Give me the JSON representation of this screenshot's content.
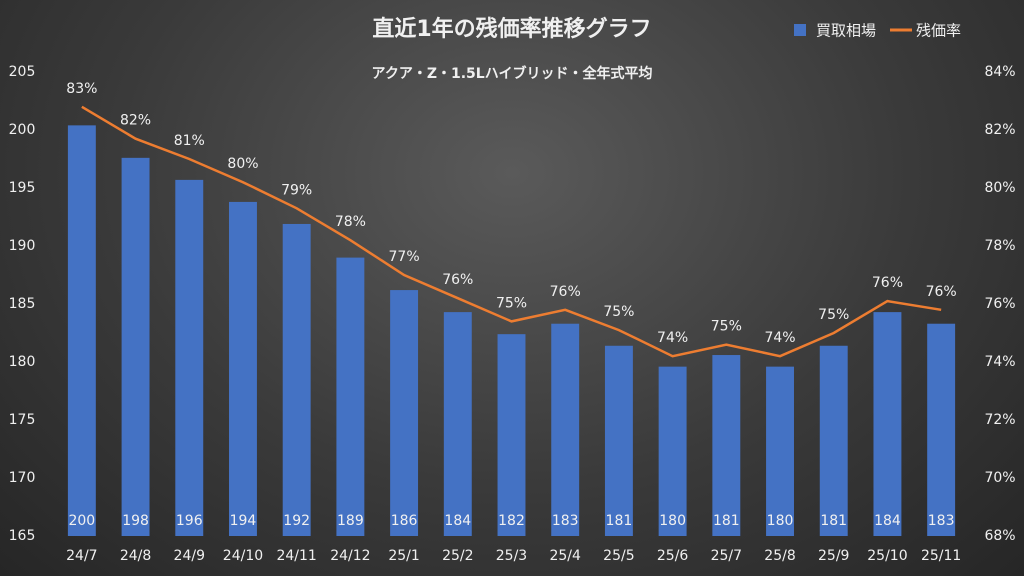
{
  "chart_data": {
    "type": "bar",
    "title": "直近1年の残価率推移グラフ",
    "subtitle": "アクア・Z・1.5Lハイブリッド・全年式平均",
    "categories": [
      "24/7",
      "24/8",
      "24/9",
      "24/10",
      "24/11",
      "24/12",
      "25/1",
      "25/2",
      "25/3",
      "25/4",
      "25/5",
      "25/6",
      "25/7",
      "25/8",
      "25/9",
      "25/10",
      "25/11"
    ],
    "series": [
      {
        "name": "買取相場",
        "color": "#4472c4",
        "type": "bar",
        "values": [
          200.4,
          197.6,
          195.7,
          193.8,
          191.9,
          189.0,
          186.2,
          184.3,
          182.4,
          183.3,
          181.4,
          179.6,
          180.6,
          179.6,
          181.4,
          184.3,
          183.3
        ],
        "value_labels": [
          "200",
          "198",
          "196",
          "194",
          "192",
          "189",
          "186",
          "184",
          "182",
          "183",
          "181",
          "180",
          "181",
          "180",
          "181",
          "184",
          "183"
        ]
      },
      {
        "name": "残価率",
        "color": "#ed7d31",
        "type": "line",
        "axis": "y2",
        "values": [
          82.8,
          81.7,
          81.0,
          80.2,
          79.3,
          78.2,
          77.0,
          76.2,
          75.4,
          75.8,
          75.1,
          74.2,
          74.6,
          74.2,
          75.0,
          76.1,
          75.8
        ],
        "value_labels": [
          "83%",
          "82%",
          "81%",
          "80%",
          "79%",
          "78%",
          "77%",
          "76%",
          "75%",
          "76%",
          "75%",
          "74%",
          "75%",
          "74%",
          "75%",
          "76%",
          "76%"
        ]
      }
    ],
    "ylim": [
      165,
      205
    ],
    "yticks": [
      165,
      170,
      175,
      180,
      185,
      190,
      195,
      200,
      205
    ],
    "y2lim": [
      68,
      84
    ],
    "y2ticks": [
      {
        "value": 68,
        "label": "68%"
      },
      {
        "value": 70,
        "label": "70%"
      },
      {
        "value": 72,
        "label": "72%"
      },
      {
        "value": 74,
        "label": "74%"
      },
      {
        "value": 76,
        "label": "76%"
      },
      {
        "value": 78,
        "label": "78%"
      },
      {
        "value": 80,
        "label": "80%"
      },
      {
        "value": 82,
        "label": "82%"
      },
      {
        "value": 84,
        "label": "84%"
      }
    ],
    "legend": "top-right",
    "grid": false
  }
}
